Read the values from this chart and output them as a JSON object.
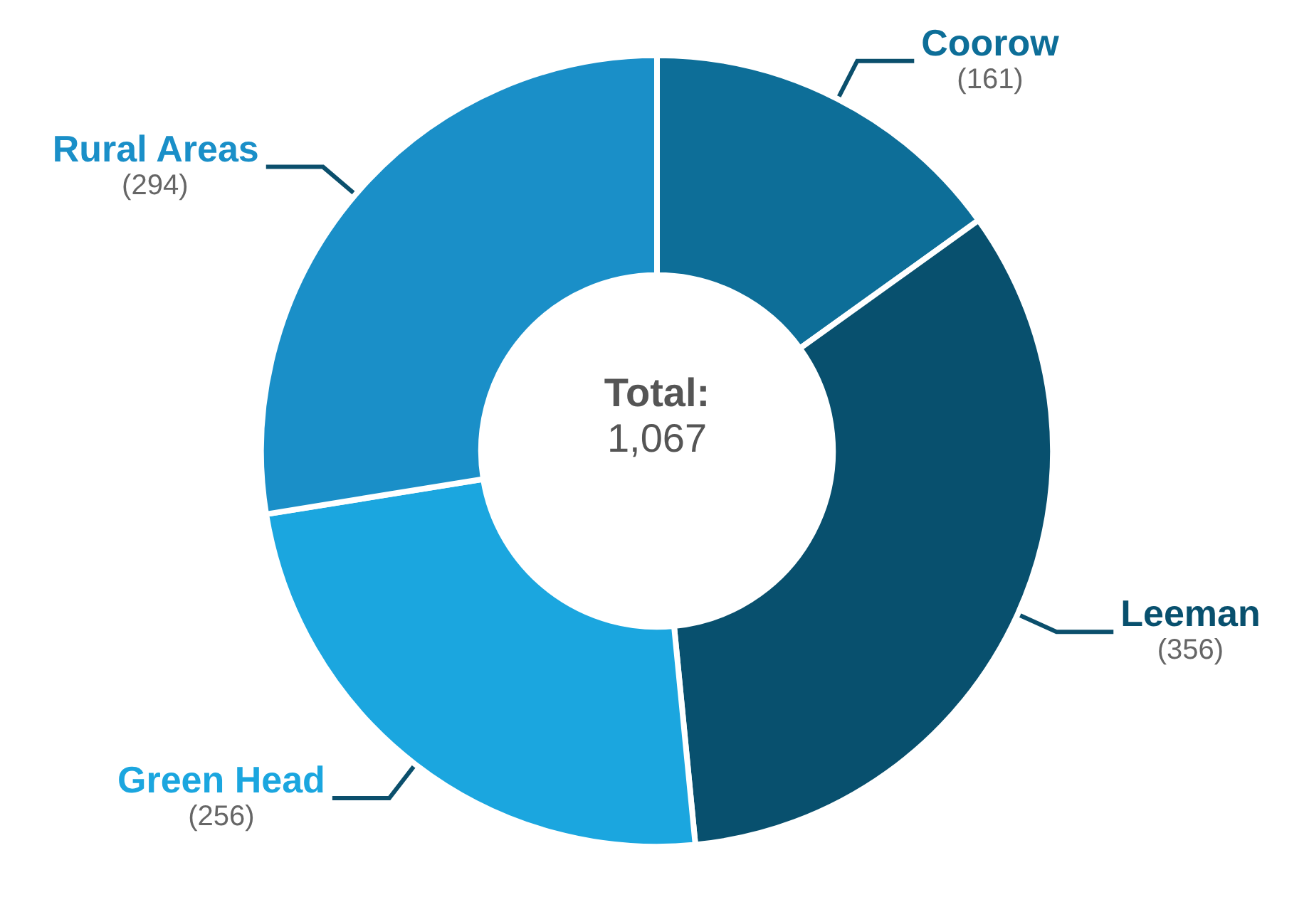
{
  "chart_data": {
    "type": "donut",
    "categories": [
      "Coorow",
      "Leeman",
      "Green Head",
      "Rural Areas"
    ],
    "values": [
      161,
      356,
      256,
      294
    ],
    "colors": [
      "#0d6e98",
      "#08506e",
      "#1ba6df",
      "#1a8fc8"
    ],
    "value_labels": [
      "(161)",
      "(356)",
      "(256)",
      "(294)"
    ],
    "legend": false,
    "annotations": [
      "Total:",
      "1,067"
    ]
  }
}
